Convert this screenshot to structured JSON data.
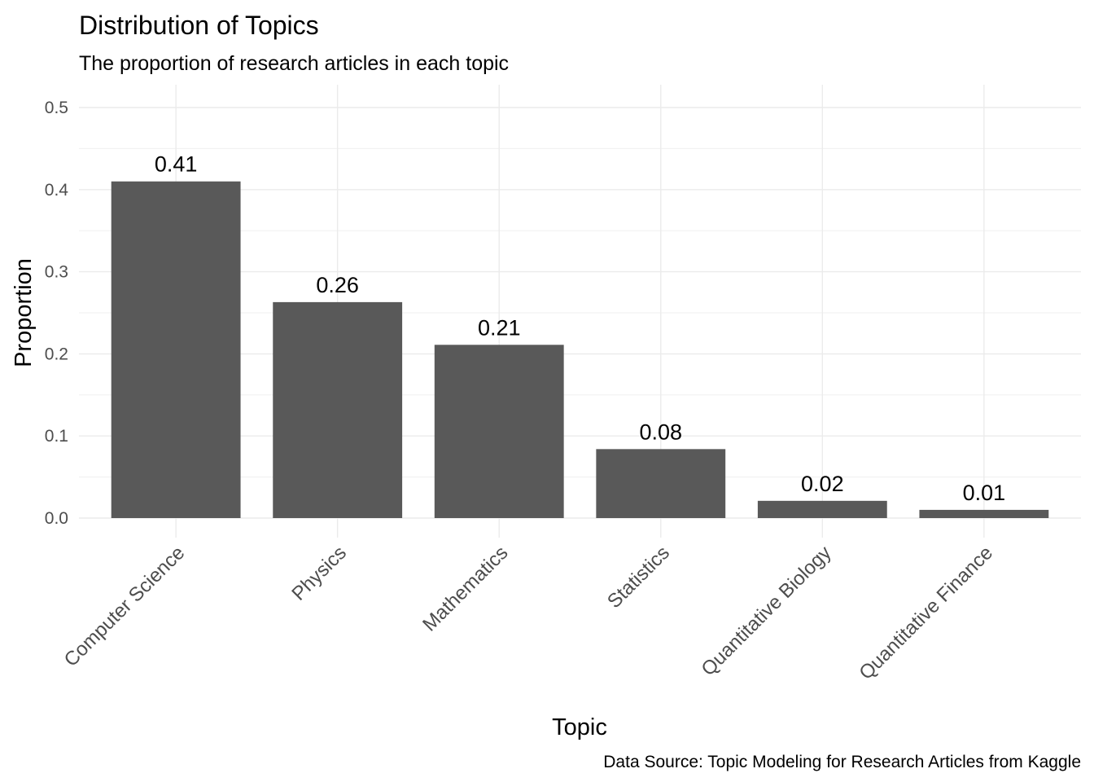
{
  "chart_data": {
    "type": "bar",
    "title": "Distribution of Topics",
    "subtitle": "The proportion of research articles in each topic",
    "xlabel": "Topic",
    "ylabel": "Proportion",
    "caption": "Data Source: Topic Modeling for Research Articles from Kaggle",
    "categories": [
      "Computer Science",
      "Physics",
      "Mathematics",
      "Statistics",
      "Quantitative Biology",
      "Quantitative Finance"
    ],
    "values": [
      0.41,
      0.263,
      0.211,
      0.084,
      0.021,
      0.01
    ],
    "data_labels": [
      "0.41",
      "0.26",
      "0.21",
      "0.08",
      "0.02",
      "0.01"
    ],
    "ylim": [
      0,
      0.5
    ],
    "yticks": [
      0.0,
      0.1,
      0.2,
      0.3,
      0.4,
      0.5
    ],
    "ytick_labels": [
      "0.0",
      "0.1",
      "0.2",
      "0.3",
      "0.4",
      "0.5"
    ],
    "grid": true,
    "legend": "none",
    "bar_color": "#595959",
    "grid_color": "#ebebeb"
  }
}
